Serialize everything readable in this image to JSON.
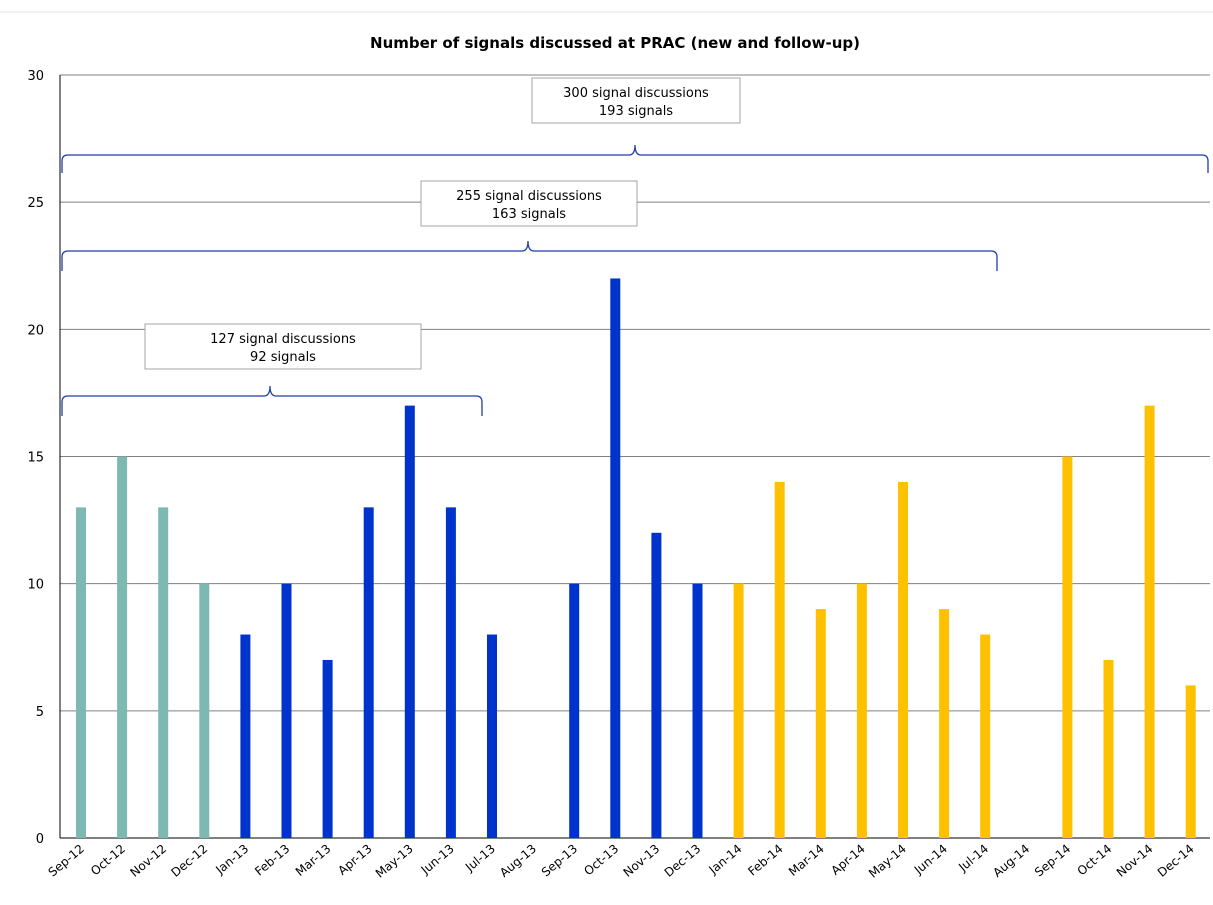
{
  "chart_data": {
    "type": "bar",
    "title": "Number of signals discussed at PRAC (new and follow-up)",
    "xlabel": "",
    "ylabel": "",
    "ylim": [
      0,
      30
    ],
    "yticks": [
      0,
      5,
      10,
      15,
      20,
      25,
      30
    ],
    "grid": true,
    "legend": "none",
    "categories": [
      "Sep-12",
      "Oct-12",
      "Nov-12",
      "Dec-12",
      "Jan-13",
      "Feb-13",
      "Mar-13",
      "Apr-13",
      "May-13",
      "Jun-13",
      "Jul-13",
      "Aug-13",
      "Sep-13",
      "Oct-13",
      "Nov-13",
      "Dec-13",
      "Jan-14",
      "Feb-14",
      "Mar-14",
      "Apr-14",
      "May-14",
      "Jun-14",
      "Jul-14",
      "Aug-14",
      "Sep-14",
      "Oct-14",
      "Nov-14",
      "Dec-14"
    ],
    "values": [
      13,
      15,
      13,
      10,
      8,
      10,
      7,
      13,
      17,
      13,
      8,
      0,
      10,
      22,
      12,
      10,
      10,
      14,
      9,
      10,
      14,
      9,
      8,
      0,
      15,
      7,
      17,
      6
    ],
    "bar_colors": [
      "#7db8b2",
      "#7db8b2",
      "#7db8b2",
      "#7db8b2",
      "#0033cc",
      "#0033cc",
      "#0033cc",
      "#0033cc",
      "#0033cc",
      "#0033cc",
      "#0033cc",
      "#0033cc",
      "#0033cc",
      "#0033cc",
      "#0033cc",
      "#0033cc",
      "#ffc000",
      "#ffc000",
      "#ffc000",
      "#ffc000",
      "#ffc000",
      "#ffc000",
      "#ffc000",
      "#ffc000",
      "#ffc000",
      "#ffc000",
      "#ffc000",
      "#ffc000"
    ],
    "annotations": [
      {
        "line1": "127 signal discussions",
        "line2": "92 signals",
        "start_category": "Sep-12",
        "end_category": "Jul-13"
      },
      {
        "line1": "255 signal discussions",
        "line2": "163 signals",
        "start_category": "Sep-12",
        "end_category": "Jul-14"
      },
      {
        "line1": "300 signal discussions",
        "line2": "193 signals",
        "start_category": "Sep-12",
        "end_category": "Dec-14"
      }
    ]
  },
  "colors": {
    "bracket": "#1f3fa8",
    "gridline": "#808080",
    "box_border": "#a6a6a6"
  }
}
